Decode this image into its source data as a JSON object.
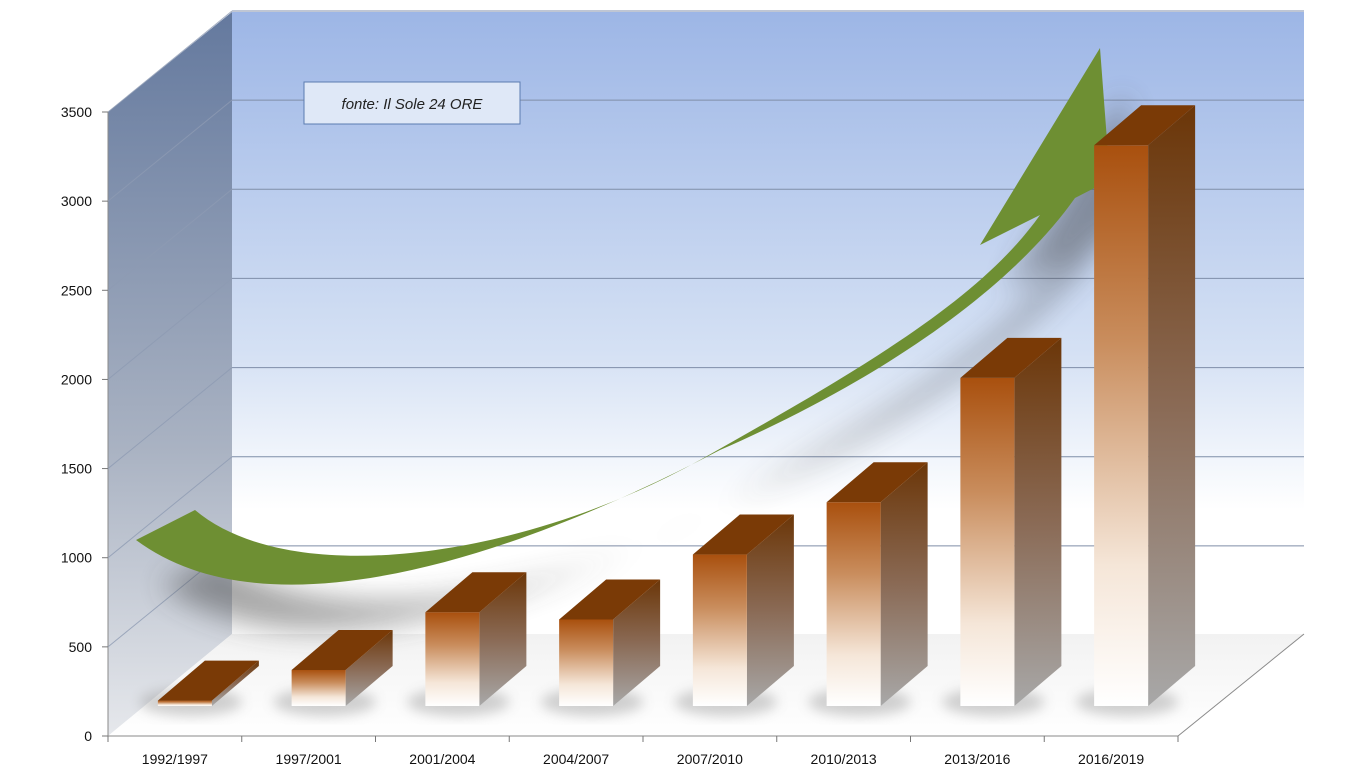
{
  "chart_data": {
    "type": "bar",
    "categories": [
      "1992/1997",
      "1997/2001",
      "2001/2004",
      "2004/2007",
      "2007/2010",
      "2010/2013",
      "2013/2016",
      "2016/2019"
    ],
    "values": [
      30,
      200,
      520,
      480,
      840,
      1130,
      1820,
      3110
    ],
    "ylim": [
      0,
      3500
    ],
    "yticks": [
      0,
      500,
      1000,
      1500,
      2000,
      2500,
      3000,
      3500
    ],
    "grid": true,
    "annotation": "fonte: Il Sole 24 ORE",
    "colors": {
      "bar_top": "#7a3a06",
      "bar_front_top": "#b8580f",
      "bar_side": "#6b3608",
      "arrow": "#6e8f33",
      "wall_top": "#a0b8e6",
      "left_wall": "#6a7fa3"
    }
  }
}
